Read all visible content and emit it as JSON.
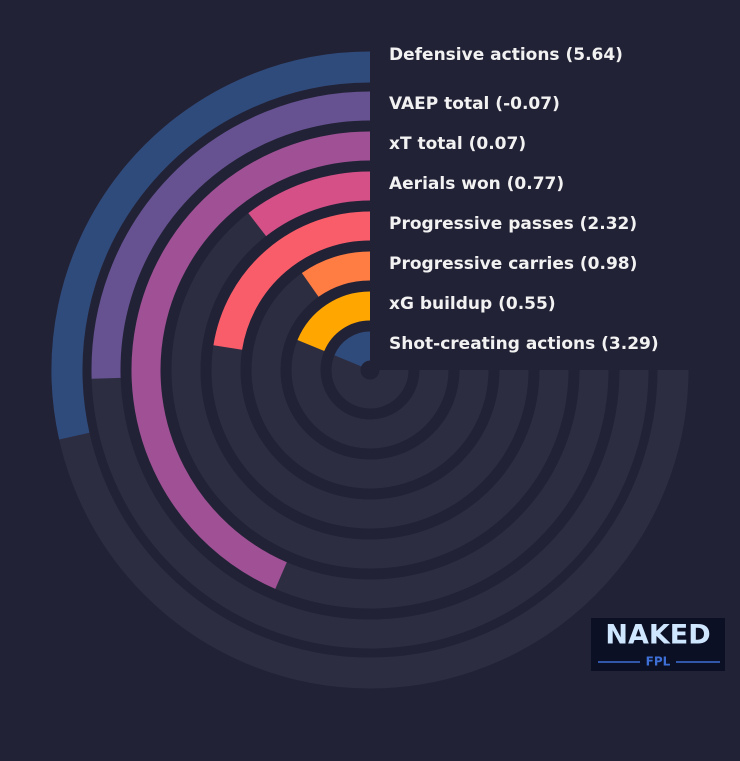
{
  "chart_data": {
    "type": "radial-bar",
    "categories": [
      "Defensive actions (5.64)",
      "VAEP total (-0.07)",
      "xT total (0.07)",
      "Aerials won (0.77)",
      "Progressive passes (2.32)",
      "Progressive carries (0.98)",
      "xG buildup (0.55)",
      "Shot-creating actions (3.29)"
    ],
    "values": [
      38,
      34,
      58,
      14,
      30,
      13,
      25,
      25
    ],
    "colors": [
      "#2f4b7c",
      "#665191",
      "#a05195",
      "#d45087",
      "#f95d6a",
      "#ff7c43",
      "#ffa600",
      "#2f4b7c"
    ],
    "ylim": [
      0,
      100
    ]
  },
  "logo": {
    "line1": "NAKED",
    "line2": "FPL"
  }
}
